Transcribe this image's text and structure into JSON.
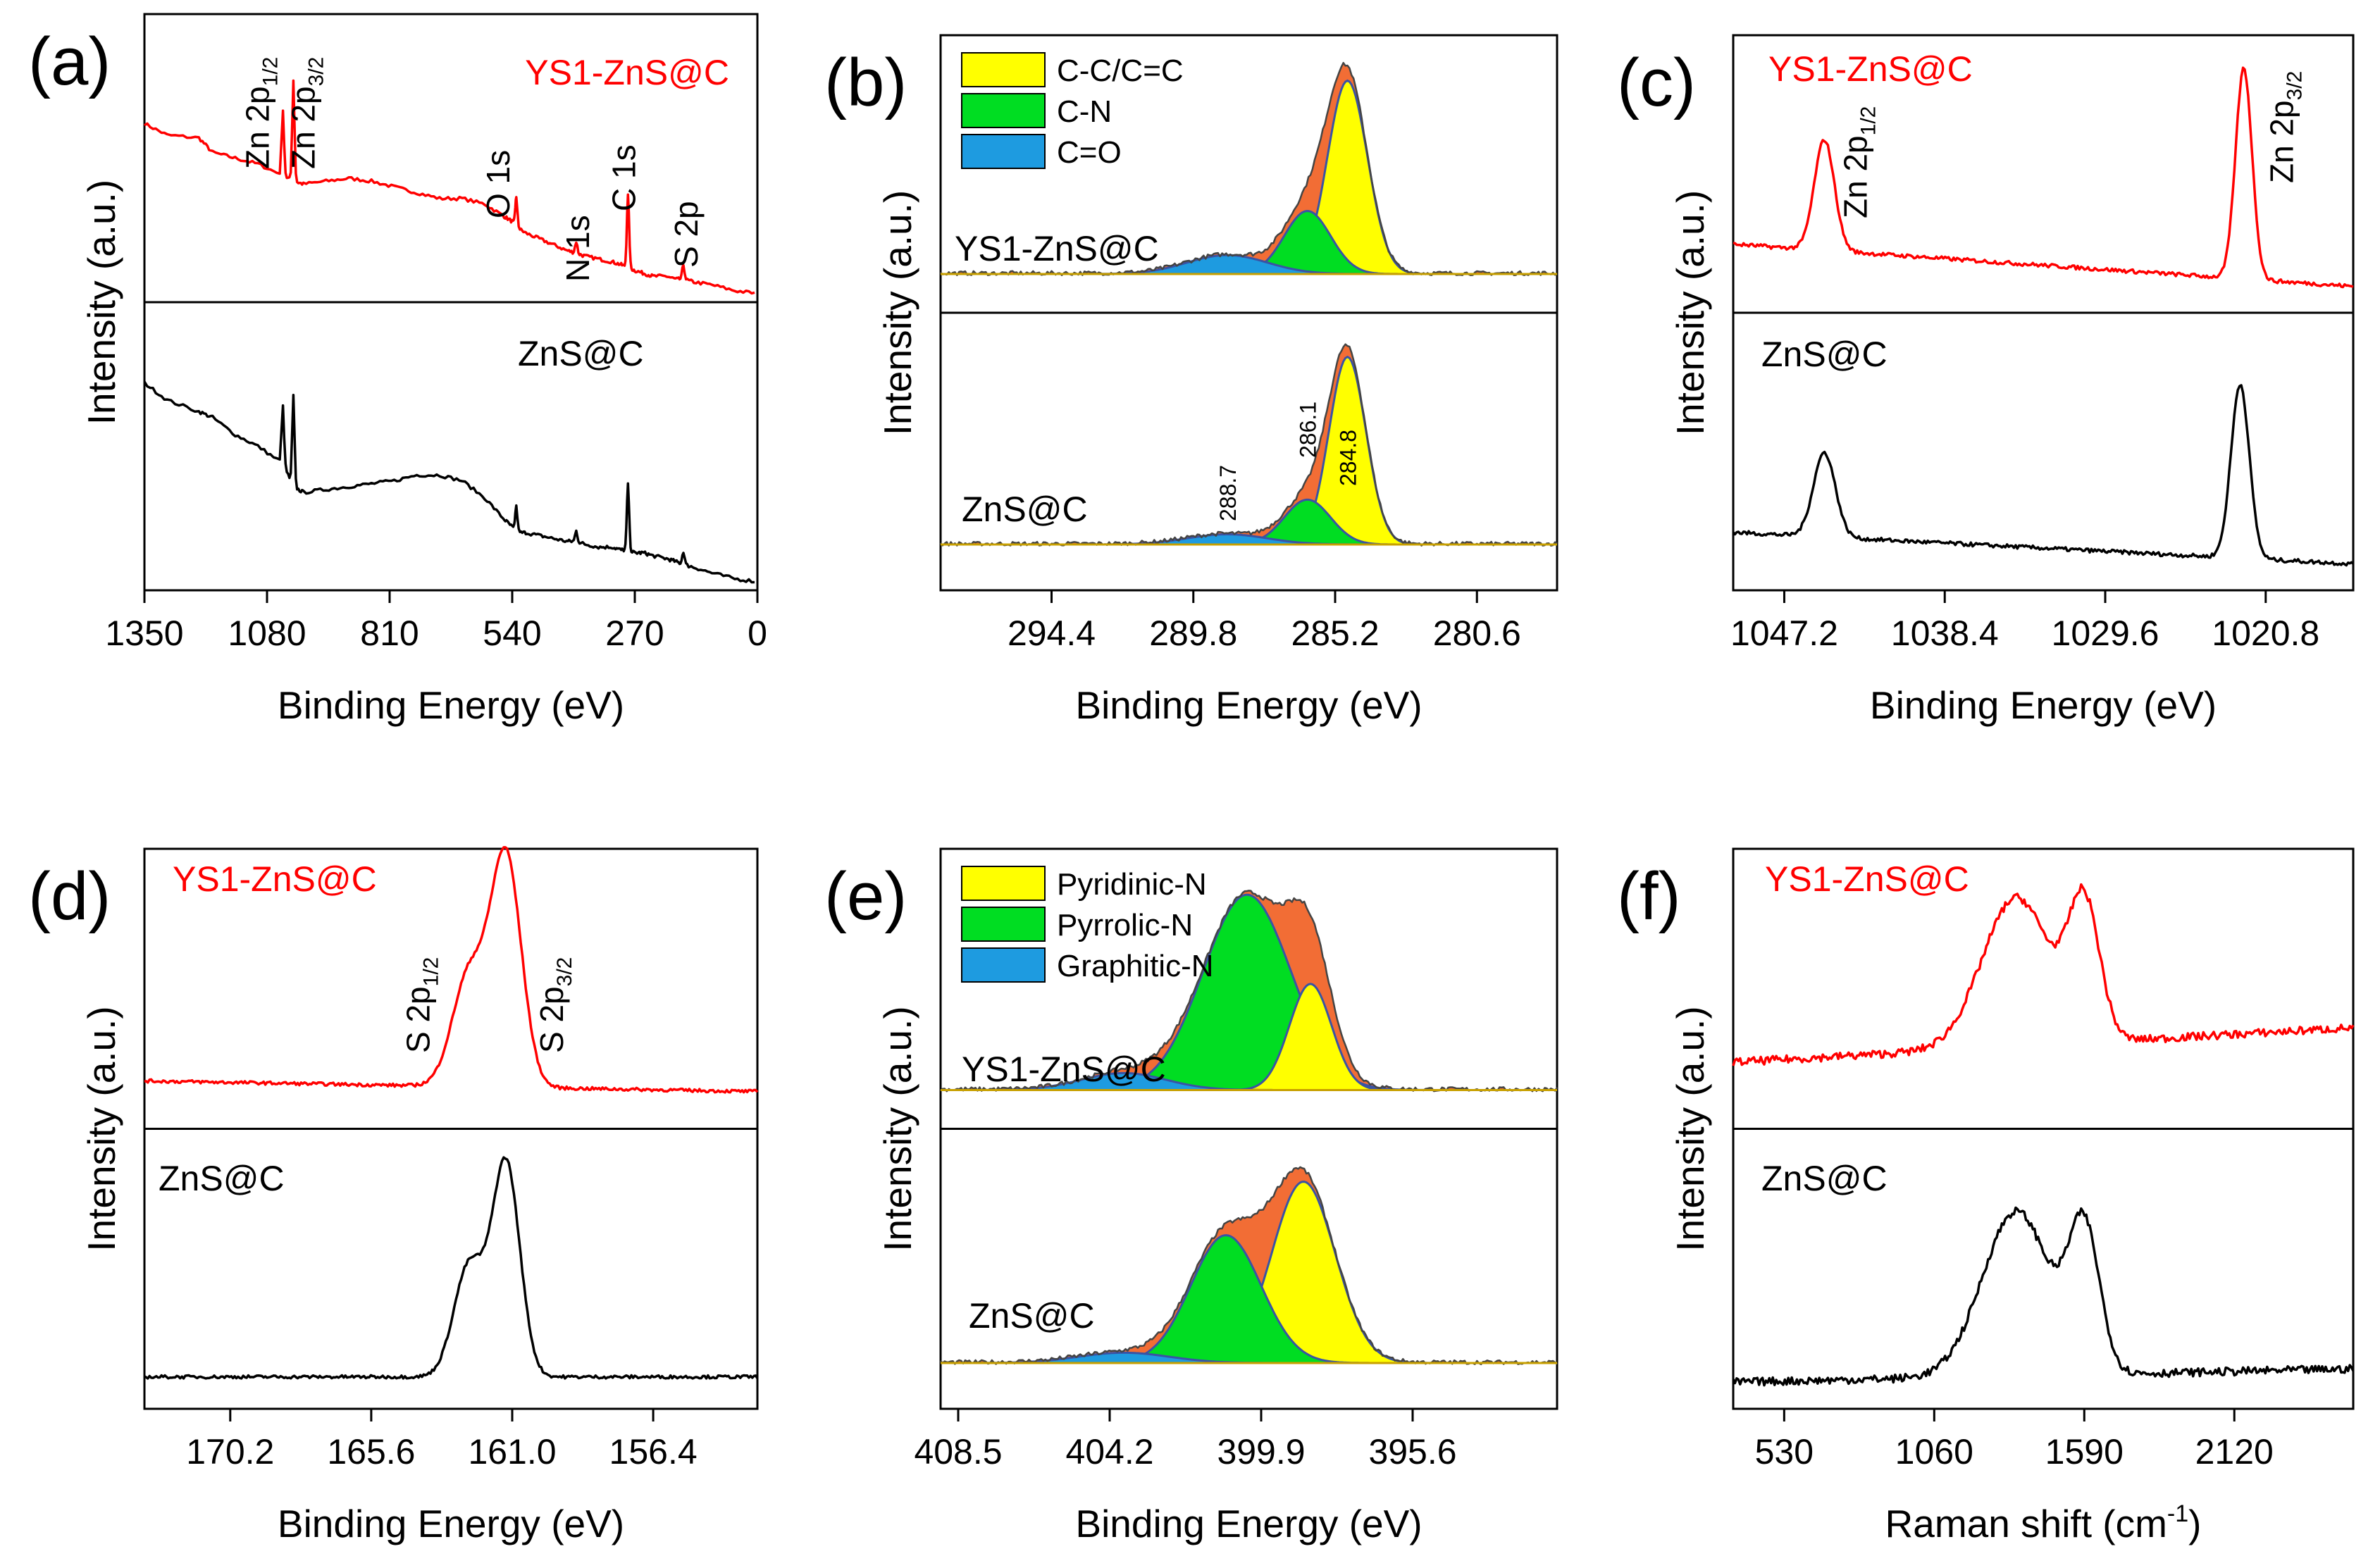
{
  "figure": {
    "ylabel": "Intensity (a.u.)",
    "colors": {
      "top": "#ff0000",
      "bottom": "#000000",
      "sum": "#f26d35",
      "fit1": "#ffff00",
      "fit2": "#00dd22",
      "fit3": "#1e9be0"
    }
  },
  "chart_data": [
    {
      "id": "a",
      "type": "line",
      "letter": "(a)",
      "xlabel": "Binding Energy (eV)",
      "ylabel": "Intensity (a.u.)",
      "xlim": [
        1350,
        0
      ],
      "xticks": [
        "1350",
        "1080",
        "810",
        "540",
        "270",
        "0"
      ],
      "xtick_values": [
        1350,
        1080,
        810,
        540,
        270,
        0
      ],
      "series": [
        {
          "name": "YS1-ZnS@C",
          "label": "YS1-ZnS@C",
          "color": "#ff0000",
          "x": [
            1350,
            1300,
            1230,
            1200,
            1150,
            1100,
            1045,
            1022,
            1000,
            950,
            900,
            850,
            800,
            750,
            700,
            650,
            600,
            560,
            540,
            531,
            510,
            480,
            450,
            420,
            399,
            380,
            350,
            320,
            300,
            285,
            270,
            250,
            230,
            200,
            180,
            163,
            140,
            100,
            50,
            0
          ],
          "y": [
            0.62,
            0.58,
            0.57,
            0.52,
            0.5,
            0.48,
            0.44,
            0.42,
            0.41,
            0.42,
            0.43,
            0.42,
            0.4,
            0.38,
            0.36,
            0.36,
            0.34,
            0.3,
            0.28,
            0.26,
            0.24,
            0.22,
            0.2,
            0.18,
            0.17,
            0.16,
            0.15,
            0.14,
            0.13,
            0.12,
            0.11,
            0.1,
            0.09,
            0.09,
            0.08,
            0.08,
            0.07,
            0.06,
            0.04,
            0.03
          ]
        },
        {
          "name": "ZnS@C",
          "label": "ZnS@C",
          "color": "#000000",
          "x": [
            1350,
            1300,
            1230,
            1200,
            1150,
            1100,
            1045,
            1022,
            1000,
            950,
            900,
            850,
            800,
            750,
            700,
            650,
            600,
            560,
            540,
            531,
            510,
            480,
            450,
            420,
            399,
            380,
            350,
            320,
            300,
            285,
            270,
            250,
            230,
            200,
            180,
            163,
            140,
            100,
            50,
            0
          ],
          "y": [
            0.72,
            0.66,
            0.62,
            0.6,
            0.54,
            0.5,
            0.44,
            0.36,
            0.34,
            0.35,
            0.36,
            0.37,
            0.38,
            0.4,
            0.4,
            0.38,
            0.32,
            0.25,
            0.22,
            0.2,
            0.2,
            0.19,
            0.18,
            0.17,
            0.17,
            0.16,
            0.15,
            0.15,
            0.14,
            0.14,
            0.13,
            0.13,
            0.12,
            0.11,
            0.1,
            0.09,
            0.08,
            0.06,
            0.04,
            0.03
          ]
        }
      ],
      "peaks": [
        {
          "label": "Zn 2p",
          "sub": "1/2",
          "x": 1045,
          "height": 0.22
        },
        {
          "label": "Zn 2p",
          "sub": "3/2",
          "x": 1022,
          "height": 0.35
        },
        {
          "label": "O 1s",
          "x": 531,
          "height": 0.1
        },
        {
          "label": "N 1s",
          "x": 399,
          "height": 0.04
        },
        {
          "label": "C 1s",
          "x": 285,
          "height": 0.25
        },
        {
          "label": "S 2p",
          "x": 163,
          "height": 0.05
        }
      ]
    },
    {
      "id": "b",
      "type": "area",
      "letter": "(b)",
      "xlabel": "Binding Energy (eV)",
      "ylabel": "Intensity (a.u.)",
      "xlim": [
        298.0,
        278.0
      ],
      "xticks": [
        "294.4",
        "289.8",
        "285.2",
        "280.6"
      ],
      "xtick_values": [
        294.4,
        289.8,
        285.2,
        280.6
      ],
      "legend": [
        "C-C/C=C",
        "C-N",
        "C=O"
      ],
      "series": [
        {
          "name": "YS1-ZnS@C",
          "label": "YS1-ZnS@C",
          "peaks": [
            {
              "component": "C-C/C=C",
              "center": 284.8,
              "amplitude": 0.92,
              "width": 0.65
            },
            {
              "component": "C-N",
              "center": 286.1,
              "amplitude": 0.3,
              "width": 0.75
            },
            {
              "component": "C=O",
              "center": 288.7,
              "amplitude": 0.09,
              "width": 1.3
            }
          ]
        },
        {
          "name": "ZnS@C",
          "label": "ZnS@C",
          "peaks": [
            {
              "component": "C-C/C=C",
              "center": 284.8,
              "amplitude": 0.92,
              "width": 0.6
            },
            {
              "component": "C-N",
              "center": 286.1,
              "amplitude": 0.22,
              "width": 0.75
            },
            {
              "component": "C=O",
              "center": 288.7,
              "amplitude": 0.05,
              "width": 1.3
            }
          ]
        }
      ],
      "annotations": [
        {
          "text": "288.7",
          "x": 288.7
        },
        {
          "text": "286.1",
          "x": 286.1
        },
        {
          "text": "284.8",
          "x": 284.8
        }
      ]
    },
    {
      "id": "c",
      "type": "line",
      "letter": "(c)",
      "xlabel": "Binding Energy (eV)",
      "ylabel": "Intensity (a.u.)",
      "xlim": [
        1050.0,
        1016.0
      ],
      "xticks": [
        "1047.2",
        "1038.4",
        "1029.6",
        "1020.8"
      ],
      "xtick_values": [
        1047.2,
        1038.4,
        1029.6,
        1020.8
      ],
      "series": [
        {
          "name": "YS1-ZnS@C",
          "label": "YS1-ZnS@C",
          "color": "#ff0000",
          "baseline": [
            0.26,
            0.1
          ],
          "peaks": [
            {
              "center": 1045.0,
              "amplitude": 0.42,
              "width": 0.55
            },
            {
              "center": 1022.0,
              "amplitude": 0.8,
              "width": 0.45
            }
          ]
        },
        {
          "name": "ZnS@C",
          "label": "ZnS@C",
          "color": "#000000",
          "baseline": [
            0.22,
            0.1
          ],
          "peaks": [
            {
              "center": 1045.0,
              "amplitude": 0.32,
              "width": 0.6
            },
            {
              "center": 1022.2,
              "amplitude": 0.66,
              "width": 0.5
            }
          ]
        }
      ],
      "peak_labels": [
        {
          "label": "Zn 2p",
          "sub": "1/2",
          "x": 1045.0
        },
        {
          "label": "Zn 2p",
          "sub": "3/2",
          "x": 1022.0
        }
      ]
    },
    {
      "id": "d",
      "type": "line",
      "letter": "(d)",
      "xlabel": "Binding Energy (eV)",
      "ylabel": "Intensity (a.u.)",
      "xlim": [
        173.0,
        153.0
      ],
      "xticks": [
        "170.2",
        "165.6",
        "161.0",
        "156.4"
      ],
      "xtick_values": [
        170.2,
        165.6,
        161.0,
        156.4
      ],
      "series": [
        {
          "name": "YS1-ZnS@C",
          "label": "YS1-ZnS@C",
          "color": "#ff0000",
          "baseline": [
            0.18,
            0.14
          ],
          "peaks": [
            {
              "center": 162.4,
              "amplitude": 0.42,
              "width": 0.55
            },
            {
              "center": 161.2,
              "amplitude": 0.86,
              "width": 0.5
            }
          ]
        },
        {
          "name": "ZnS@C",
          "label": "ZnS@C",
          "color": "#000000",
          "baseline": [
            0.12,
            0.12
          ],
          "peaks": [
            {
              "center": 162.4,
              "amplitude": 0.42,
              "width": 0.5
            },
            {
              "center": 161.2,
              "amplitude": 0.8,
              "width": 0.45
            }
          ]
        }
      ],
      "peak_labels": [
        {
          "label": "S 2p",
          "sub": "1/2",
          "x": 163.2
        },
        {
          "label": "S 2p",
          "sub": "3/2",
          "x": 159.8
        }
      ]
    },
    {
      "id": "e",
      "type": "area",
      "letter": "(e)",
      "xlabel": "Binding Energy (eV)",
      "ylabel": "Intensity (a.u.)",
      "xlim": [
        409.0,
        391.5
      ],
      "xticks": [
        "408.5",
        "404.2",
        "399.9",
        "395.6"
      ],
      "xtick_values": [
        408.5,
        404.2,
        399.9,
        395.6
      ],
      "legend": [
        "Pyridinic-N",
        "Pyrrolic-N",
        "Graphitic-N"
      ],
      "series": [
        {
          "name": "YS1-ZnS@C",
          "label": "YS1-ZnS@C",
          "peaks": [
            {
              "component": "Pyridinic-N",
              "center": 398.5,
              "amplitude": 0.5,
              "width": 0.6
            },
            {
              "component": "Pyrrolic-N",
              "center": 400.3,
              "amplitude": 0.92,
              "width": 1.25
            },
            {
              "component": "Graphitic-N",
              "center": 403.8,
              "amplitude": 0.08,
              "width": 1.2
            }
          ]
        },
        {
          "name": "ZnS@C",
          "label": "ZnS@C",
          "peaks": [
            {
              "component": "Pyridinic-N",
              "center": 398.7,
              "amplitude": 0.88,
              "width": 0.9
            },
            {
              "component": "Pyrrolic-N",
              "center": 400.9,
              "amplitude": 0.62,
              "width": 1.0
            },
            {
              "component": "Graphitic-N",
              "center": 403.8,
              "amplitude": 0.05,
              "width": 1.3
            }
          ]
        }
      ]
    },
    {
      "id": "f",
      "type": "line",
      "letter": "(f)",
      "xlabel": "Raman shift (cm",
      "xlabel_sup": "-1",
      "xlabel_end": ")",
      "ylabel": "Intensity (a.u.)",
      "xlim": [
        350,
        2540
      ],
      "xticks": [
        "530",
        "1060",
        "1590",
        "2120"
      ],
      "xtick_values": [
        530,
        1060,
        1590,
        2120
      ],
      "series": [
        {
          "name": "YS1-ZnS@C",
          "label": "YS1-ZnS@C",
          "color": "#ff0000",
          "baseline": [
            0.25,
            0.38
          ],
          "peaks": [
            {
              "center": 1350,
              "amplitude": 0.56,
              "width": 120
            },
            {
              "center": 1590,
              "amplitude": 0.5,
              "width": 55
            }
          ]
        },
        {
          "name": "ZnS@C",
          "label": "ZnS@C",
          "color": "#000000",
          "baseline": [
            0.1,
            0.15
          ],
          "peaks": [
            {
              "center": 1350,
              "amplitude": 0.62,
              "width": 120
            },
            {
              "center": 1590,
              "amplitude": 0.52,
              "width": 55
            }
          ]
        }
      ]
    }
  ]
}
